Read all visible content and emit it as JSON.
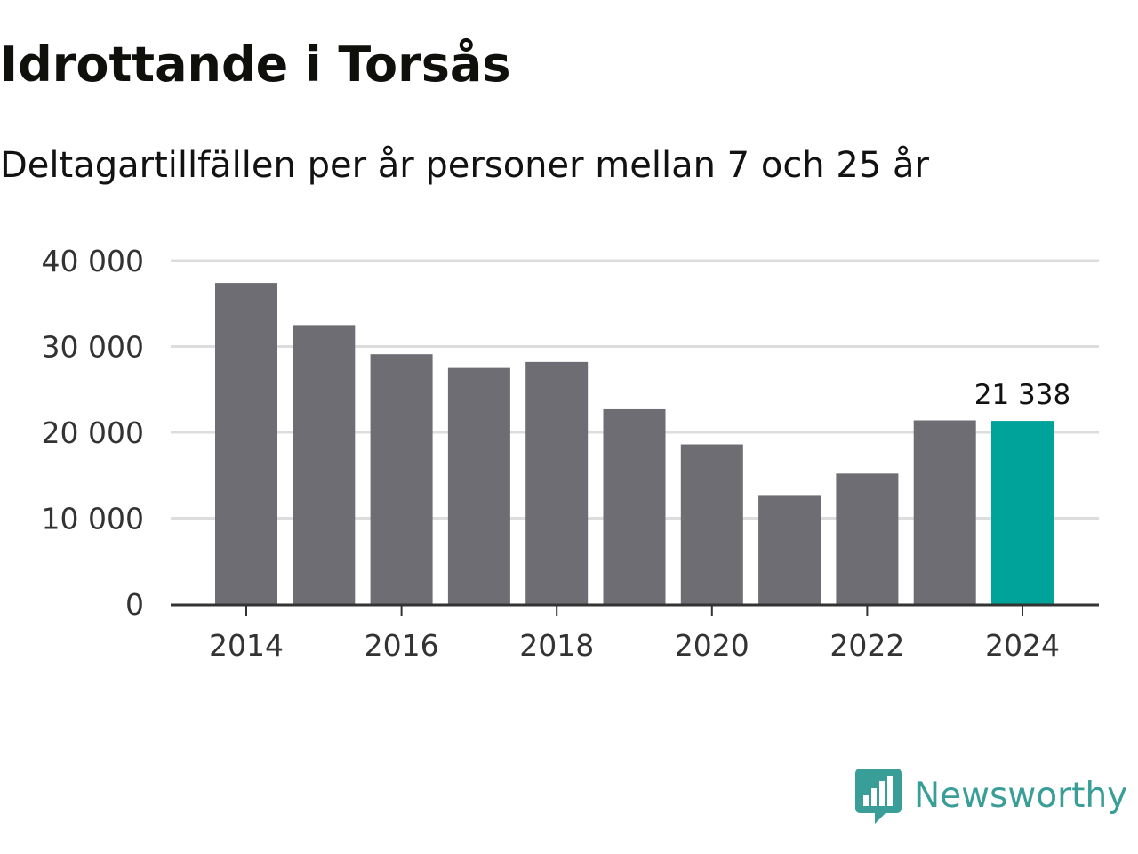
{
  "title": "Idrottande i Torsås",
  "subtitle": "Deltagartillfällen per år personer mellan 7 och 25 år",
  "brand": {
    "name": "Newsworthy",
    "logo_icon": "newsworthy-bar-chart-logo-icon",
    "color": "#3a9e98"
  },
  "colors": {
    "bar": "#6e6d73",
    "highlight": "#00a39a",
    "grid": "#dddddd",
    "axis": "#333333"
  },
  "chart_data": {
    "type": "bar",
    "title": "Idrottande i Torsås",
    "subtitle": "Deltagartillfällen per år personer mellan 7 och 25 år",
    "xlabel": "",
    "ylabel": "",
    "categories": [
      2014,
      2015,
      2016,
      2017,
      2018,
      2019,
      2020,
      2021,
      2022,
      2023,
      2024
    ],
    "values": [
      37400,
      32500,
      29100,
      27500,
      28200,
      22700,
      18600,
      12600,
      15200,
      21400,
      21338
    ],
    "highlight_index": 10,
    "highlight_label": "21 338",
    "ylim": [
      0,
      40000
    ],
    "y_ticks": [
      0,
      10000,
      20000,
      30000,
      40000
    ],
    "y_tick_labels": [
      "0",
      "10 000",
      "20 000",
      "30 000",
      "40 000"
    ],
    "x_ticks": [
      2014,
      2016,
      2018,
      2020,
      2022,
      2024
    ],
    "x_tick_labels": [
      "2014",
      "2016",
      "2018",
      "2020",
      "2022",
      "2024"
    ],
    "grid": true,
    "legend": "none"
  }
}
